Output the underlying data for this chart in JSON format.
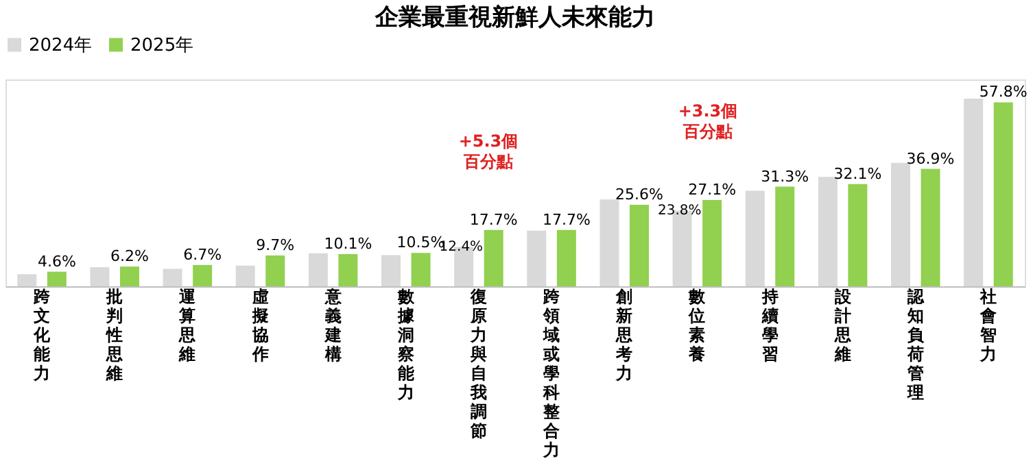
{
  "chart_data": {
    "type": "bar",
    "title": "企業最重視新鮮人未來能力",
    "categories": [
      "跨文化能力",
      "批判性思維",
      "運算思維",
      "虛擬協作",
      "意義建構",
      "數據洞察能力",
      "復原力與自我調節",
      "跨領域或學科整合力",
      "創新思考力",
      "數位素養",
      "持續學習",
      "設計思維",
      "認知負荷管理",
      "社會智力"
    ],
    "series": [
      {
        "name": "2024年",
        "color": "#d9d9d9",
        "values": [
          3.8,
          6.0,
          5.5,
          6.5,
          10.4,
          9.8,
          12.4,
          17.5,
          27.3,
          23.8,
          30.0,
          34.4,
          38.8,
          59.0
        ],
        "value_labels": [
          null,
          null,
          null,
          null,
          null,
          null,
          "12.4%",
          null,
          null,
          "23.8%",
          null,
          null,
          null,
          null
        ]
      },
      {
        "name": "2025年",
        "color": "#92d050",
        "values": [
          4.6,
          6.2,
          6.7,
          9.7,
          10.1,
          10.5,
          17.7,
          17.7,
          25.6,
          27.1,
          31.3,
          32.1,
          36.9,
          57.8
        ],
        "value_labels": [
          "4.6%",
          "6.2%",
          "6.7%",
          "9.7%",
          "10.1%",
          "10.5%",
          "17.7%",
          "17.7%",
          "25.6%",
          "27.1%",
          "31.3%",
          "32.1%",
          "36.9%",
          "57.8%"
        ]
      }
    ],
    "ylim": [
      0,
      65
    ],
    "tick_labels": "x",
    "grid": false,
    "legend": "top",
    "annotations": [
      "+5.3個百分點",
      "+3.3個百分點"
    ]
  }
}
